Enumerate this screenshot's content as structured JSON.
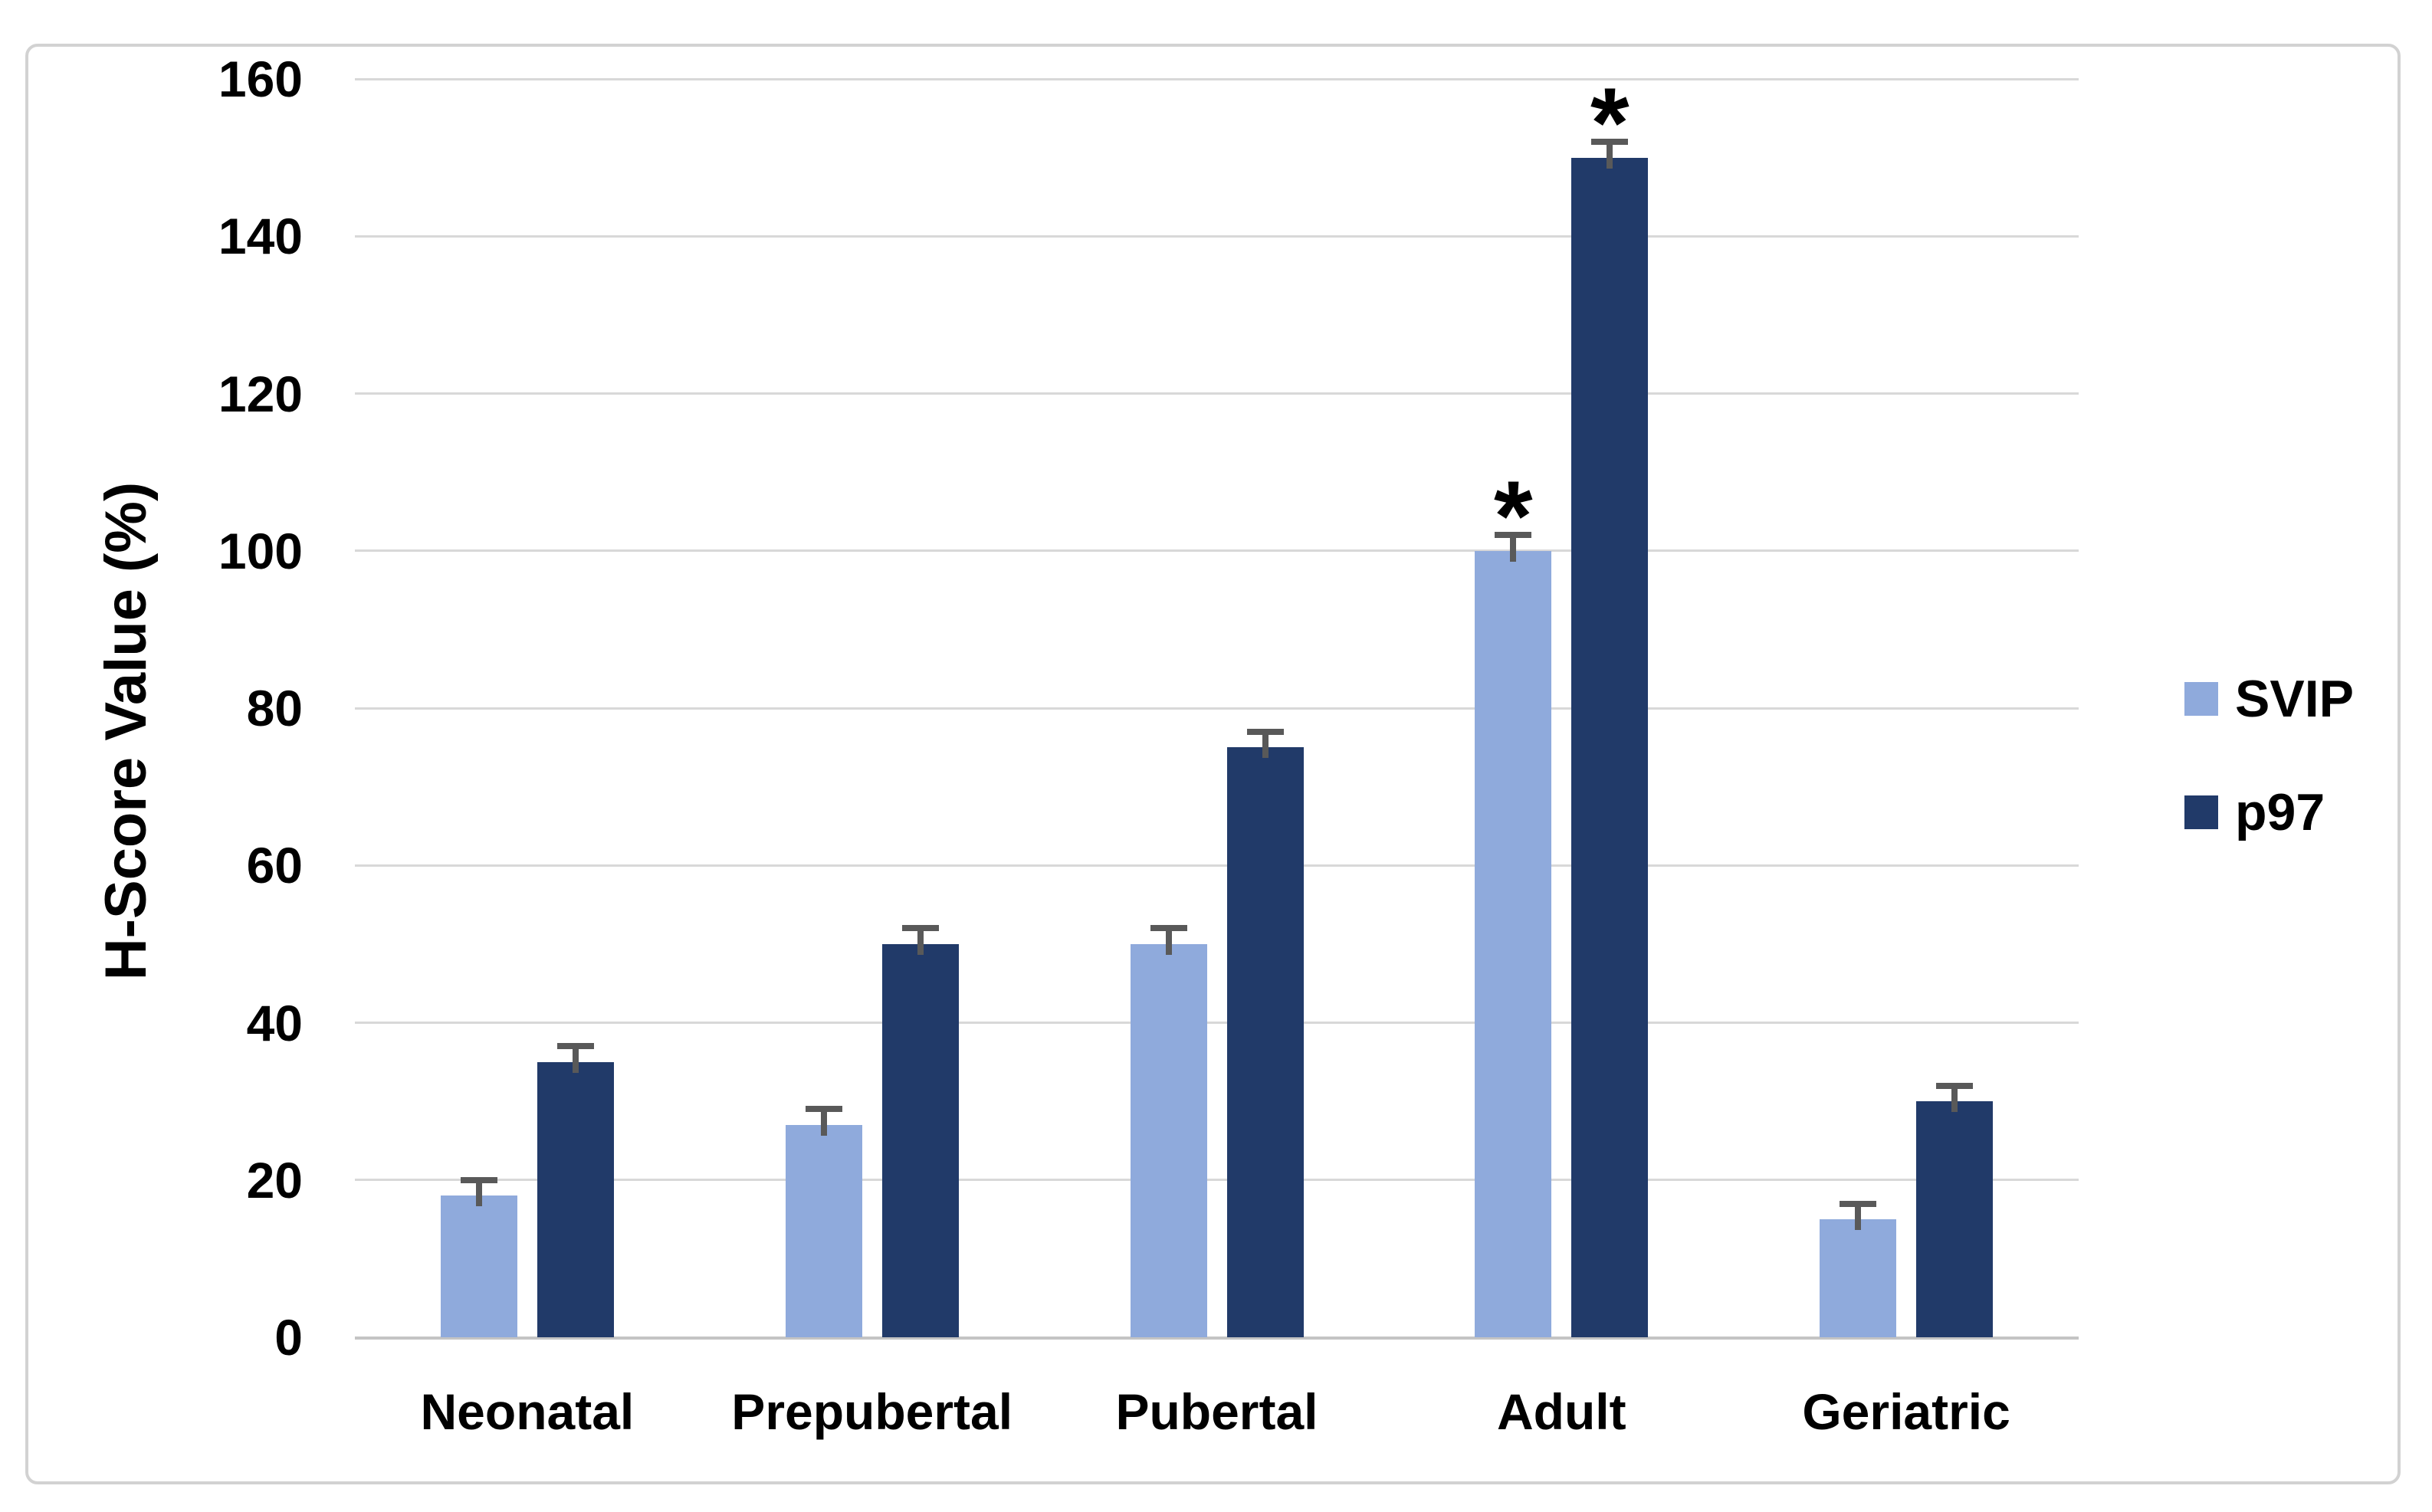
{
  "chart_data": {
    "type": "bar",
    "title": "",
    "ylabel": "H-Score Value (%)",
    "xlabel": "",
    "ylim": [
      0,
      160
    ],
    "y_ticks": [
      0,
      20,
      40,
      60,
      80,
      100,
      120,
      140,
      160
    ],
    "grid": "horizontal",
    "legend_position": "right",
    "categories": [
      "Neonatal",
      "Prepubertal",
      "Pubertal",
      "Adult",
      "Geriatric"
    ],
    "series": [
      {
        "name": "SVIP",
        "color": "#8FAADC",
        "values": [
          18,
          27,
          50,
          100,
          15
        ],
        "errors": [
          2,
          2,
          2,
          2,
          2
        ]
      },
      {
        "name": "p97",
        "color": "#213A69",
        "values": [
          35,
          50,
          75,
          150,
          30
        ],
        "errors": [
          2,
          2,
          2,
          2,
          2
        ]
      }
    ],
    "annotations": [
      {
        "category": "Adult",
        "series": "SVIP",
        "text": "*"
      },
      {
        "category": "Adult",
        "series": "p97",
        "text": "*"
      }
    ],
    "error_bar_color": "#595959",
    "gridline_color": "#D8D8D8",
    "axis_line_color": "#C4C4C4",
    "frame_color": "#D2D2D2",
    "text_color": "#000000"
  }
}
